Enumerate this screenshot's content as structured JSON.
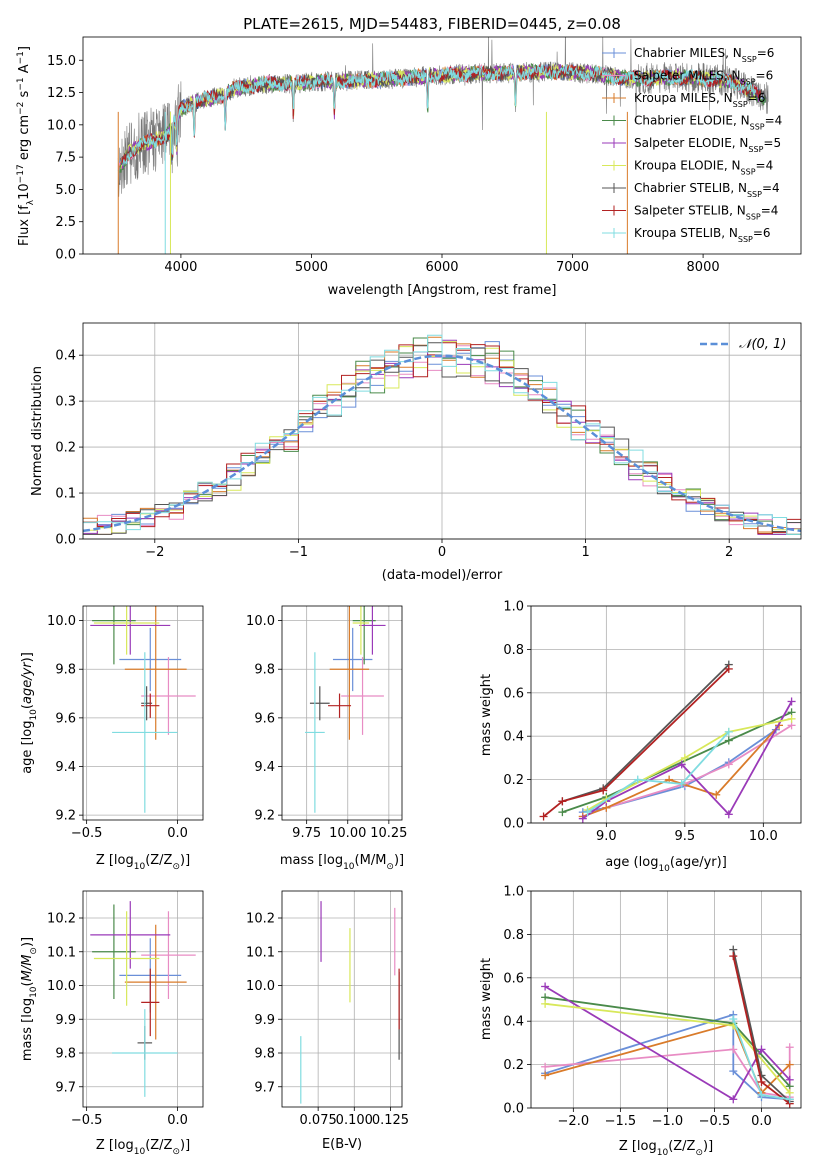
{
  "figure": {
    "title": "PLATE=2615, MJD=54483, FIBERID=0445, z=0.08"
  },
  "colors": {
    "chabrier_miles": "#6a8fd8",
    "salpeter_miles": "#e88cc4",
    "kroupa_miles": "#d97b2a",
    "chabrier_elodie": "#4a8a4a",
    "salpeter_elodie": "#9a3ab8",
    "kroupa_elodie": "#d8e85a",
    "chabrier_stelib": "#555555",
    "salpeter_stelib": "#b22222",
    "kroupa_stelib": "#80dce0",
    "grid": "#b0b0b0",
    "normal_curve": "#5b8fd8"
  },
  "chart_data": [
    {
      "id": "spectrum",
      "type": "line",
      "xlabel": "wavelength [Angstrom, rest frame]",
      "ylabel_text": "Flux [f",
      "xlim": [
        3250,
        8750
      ],
      "ylim": [
        0,
        16.8
      ],
      "xticks": [
        4000,
        5000,
        6000,
        7000,
        8000
      ],
      "yticks": [
        0.0,
        2.5,
        5.0,
        7.5,
        10.0,
        12.5,
        15.0
      ],
      "legend": {
        "position": "right",
        "entries": [
          {
            "label": "Chabrier MILES, N",
            "ssp": "6"
          },
          {
            "label": "Salpeter MILES, N",
            "ssp": "6"
          },
          {
            "label": "Kroupa MILES, N",
            "ssp": "6"
          },
          {
            "label": "Chabrier ELODIE, N",
            "ssp": "4"
          },
          {
            "label": "Salpeter ELODIE, N",
            "ssp": "5"
          },
          {
            "label": "Kroupa ELODIE, N",
            "ssp": "4"
          },
          {
            "label": "Chabrier STELIB, N",
            "ssp": "4"
          },
          {
            "label": "Salpeter STELIB, N",
            "ssp": "4"
          },
          {
            "label": "Kroupa STELIB, N",
            "ssp": "6"
          }
        ]
      },
      "model_anchor_x": [
        3520,
        3600,
        3700,
        3800,
        3900,
        4000,
        4100,
        4200,
        4300,
        4400,
        4500,
        4700,
        4900,
        5100,
        5300,
        5500,
        5700,
        5900,
        6100,
        6300,
        6500,
        6700,
        6900,
        7100,
        7300,
        7400,
        7600,
        7800,
        8000,
        8200,
        8300,
        8400,
        8500
      ],
      "model_anchor_y": [
        6.5,
        7.8,
        8.5,
        8.8,
        9.2,
        11.2,
        11.8,
        12.0,
        12.2,
        12.8,
        13.0,
        13.2,
        13.2,
        13.4,
        13.4,
        13.5,
        13.6,
        13.8,
        13.9,
        14.0,
        14.0,
        14.1,
        14.1,
        14.0,
        13.8,
        13.6,
        13.6,
        13.7,
        13.6,
        13.4,
        13.0,
        12.4,
        11.9
      ]
    },
    {
      "id": "residuals",
      "type": "histogram",
      "xlabel": "(data-model)/error",
      "ylabel": "Normed distribution",
      "xlim": [
        -2.5,
        2.5
      ],
      "ylim": [
        0,
        0.47
      ],
      "xticks": [
        -2,
        -1,
        0,
        1,
        2
      ],
      "yticks": [
        0.0,
        0.1,
        0.2,
        0.3,
        0.4
      ],
      "grid": true,
      "legend": {
        "position": "top-right",
        "label": "𝒩(0, 1)"
      },
      "bin_edges_start": -2.5,
      "bin_width": 0.1,
      "normal_curve": {
        "mu": 0,
        "sigma": 1
      }
    },
    {
      "id": "age_vs_Z",
      "type": "scatter",
      "xlabel": "Z [log",
      "ylabel": "age  [log",
      "xlim": [
        -0.52,
        0.14
      ],
      "ylim": [
        9.18,
        10.06
      ],
      "xticks": [
        -0.5,
        0.0
      ],
      "yticks": [
        9.2,
        9.4,
        9.6,
        9.8,
        10.0
      ],
      "grid": true,
      "points": [
        {
          "series": "chabrier_miles",
          "x": -0.15,
          "y": 9.84,
          "xerr": 0.17,
          "yerr": 0.13
        },
        {
          "series": "salpeter_miles",
          "x": -0.05,
          "y": 9.69,
          "xerr": 0.15,
          "yerr": 0.16
        },
        {
          "series": "kroupa_miles",
          "x": -0.12,
          "y": 9.8,
          "xerr": 0.17,
          "yerr": 0.29
        },
        {
          "series": "chabrier_elodie",
          "x": -0.35,
          "y": 10.0,
          "xerr": 0.12,
          "yerr": 0.18
        },
        {
          "series": "salpeter_elodie",
          "x": -0.26,
          "y": 9.98,
          "xerr": 0.22,
          "yerr": 0.12
        },
        {
          "series": "kroupa_elodie",
          "x": -0.28,
          "y": 9.99,
          "xerr": 0.18,
          "yerr": 0.13
        },
        {
          "series": "chabrier_stelib",
          "x": -0.17,
          "y": 9.66,
          "xerr": 0.03,
          "yerr": 0.07
        },
        {
          "series": "salpeter_stelib",
          "x": -0.15,
          "y": 9.65,
          "xerr": 0.05,
          "yerr": 0.05
        },
        {
          "series": "kroupa_stelib",
          "x": -0.18,
          "y": 9.54,
          "xerr": 0.18,
          "yerr": 0.33
        }
      ]
    },
    {
      "id": "age_vs_mass",
      "type": "scatter",
      "xlabel": "mass [log",
      "xlim": [
        9.6,
        10.33
      ],
      "ylim": [
        9.18,
        10.06
      ],
      "xticks": [
        9.75,
        10.0,
        10.25
      ],
      "yticks": [
        9.2,
        9.4,
        9.6,
        9.8,
        10.0
      ],
      "grid": true,
      "points": [
        {
          "series": "chabrier_miles",
          "x": 10.03,
          "y": 9.84,
          "xerr": 0.12,
          "yerr": 0.13
        },
        {
          "series": "salpeter_miles",
          "x": 10.09,
          "y": 9.69,
          "xerr": 0.13,
          "yerr": 0.16
        },
        {
          "series": "kroupa_miles",
          "x": 10.01,
          "y": 9.8,
          "xerr": 0.12,
          "yerr": 0.29
        },
        {
          "series": "chabrier_elodie",
          "x": 10.1,
          "y": 10.0,
          "xerr": 0.07,
          "yerr": 0.18
        },
        {
          "series": "salpeter_elodie",
          "x": 10.15,
          "y": 9.98,
          "xerr": 0.08,
          "yerr": 0.12
        },
        {
          "series": "kroupa_elodie",
          "x": 10.08,
          "y": 9.99,
          "xerr": 0.05,
          "yerr": 0.13
        },
        {
          "series": "chabrier_stelib",
          "x": 9.83,
          "y": 9.66,
          "xerr": 0.06,
          "yerr": 0.07
        },
        {
          "series": "salpeter_stelib",
          "x": 9.95,
          "y": 9.65,
          "xerr": 0.07,
          "yerr": 0.05
        },
        {
          "series": "kroupa_stelib",
          "x": 9.8,
          "y": 9.54,
          "xerr": 0.06,
          "yerr": 0.33
        }
      ]
    },
    {
      "id": "mass_weight_vs_age",
      "type": "line",
      "xlabel": "age  (log",
      "ylabel": "mass weight",
      "xlim": [
        8.52,
        10.24
      ],
      "ylim": [
        0,
        1
      ],
      "xticks": [
        9.0,
        9.5,
        10.0
      ],
      "yticks": [
        0.0,
        0.2,
        0.4,
        0.6,
        0.8,
        1.0
      ],
      "grid": true,
      "series": [
        {
          "key": "chabrier_miles",
          "x": [
            8.85,
            9.0,
            9.5,
            9.78,
            10.08
          ],
          "y": [
            0.05,
            0.07,
            0.17,
            0.28,
            0.43
          ]
        },
        {
          "key": "salpeter_miles",
          "x": [
            8.85,
            9.0,
            9.5,
            9.78,
            10.18
          ],
          "y": [
            0.03,
            0.07,
            0.18,
            0.27,
            0.45
          ]
        },
        {
          "key": "kroupa_miles",
          "x": [
            8.85,
            9.0,
            9.4,
            9.7,
            10.1
          ],
          "y": [
            0.03,
            0.07,
            0.2,
            0.13,
            0.45
          ]
        },
        {
          "key": "chabrier_elodie",
          "x": [
            8.72,
            9.0,
            9.78,
            10.18
          ],
          "y": [
            0.05,
            0.12,
            0.38,
            0.51
          ]
        },
        {
          "key": "salpeter_elodie",
          "x": [
            8.85,
            9.0,
            9.48,
            9.78,
            10.18
          ],
          "y": [
            0.02,
            0.1,
            0.27,
            0.04,
            0.56
          ]
        },
        {
          "key": "kroupa_elodie",
          "x": [
            8.88,
            9.0,
            9.5,
            9.78,
            10.18
          ],
          "y": [
            0.06,
            0.11,
            0.3,
            0.42,
            0.48
          ]
        },
        {
          "key": "chabrier_stelib",
          "x": [
            8.72,
            8.98,
            9.78
          ],
          "y": [
            0.1,
            0.16,
            0.73
          ]
        },
        {
          "key": "salpeter_stelib",
          "x": [
            8.6,
            8.72,
            8.98,
            9.78
          ],
          "y": [
            0.03,
            0.1,
            0.15,
            0.71
          ]
        },
        {
          "key": "kroupa_stelib",
          "x": [
            8.88,
            9.2,
            9.48,
            9.78
          ],
          "y": [
            0.05,
            0.2,
            0.18,
            0.42
          ]
        }
      ]
    },
    {
      "id": "mass_vs_Z",
      "type": "scatter",
      "xlabel": "Z [log",
      "ylabel": "mass [log",
      "xlim": [
        -0.52,
        0.14
      ],
      "ylim": [
        9.64,
        10.28
      ],
      "xticks": [
        -0.5,
        0.0
      ],
      "yticks": [
        9.7,
        9.8,
        9.9,
        10.0,
        10.1,
        10.2
      ],
      "grid": true,
      "points": [
        {
          "series": "chabrier_miles",
          "x": -0.15,
          "y": 10.03,
          "xerr": 0.17,
          "yerr": 0.11
        },
        {
          "series": "salpeter_miles",
          "x": -0.05,
          "y": 10.09,
          "xerr": 0.15,
          "yerr": 0.13
        },
        {
          "series": "kroupa_miles",
          "x": -0.12,
          "y": 10.01,
          "xerr": 0.17,
          "yerr": 0.17
        },
        {
          "series": "chabrier_elodie",
          "x": -0.35,
          "y": 10.1,
          "xerr": 0.12,
          "yerr": 0.14
        },
        {
          "series": "salpeter_elodie",
          "x": -0.26,
          "y": 10.15,
          "xerr": 0.22,
          "yerr": 0.1
        },
        {
          "series": "kroupa_elodie",
          "x": -0.28,
          "y": 10.08,
          "xerr": 0.18,
          "yerr": 0.14
        },
        {
          "series": "chabrier_stelib",
          "x": -0.18,
          "y": 9.83,
          "xerr": 0.04,
          "yerr": 0.05
        },
        {
          "series": "salpeter_stelib",
          "x": -0.15,
          "y": 9.95,
          "xerr": 0.05,
          "yerr": 0.1
        },
        {
          "series": "kroupa_stelib",
          "x": -0.18,
          "y": 9.8,
          "xerr": 0.18,
          "yerr": 0.13
        }
      ]
    },
    {
      "id": "mass_vs_EBV",
      "type": "scatter",
      "xlabel": "E(B-V)",
      "xlim": [
        0.05,
        0.133
      ],
      "ylim": [
        9.64,
        10.28
      ],
      "xticks": [
        0.075,
        0.1,
        0.125
      ],
      "xtick_labels": [
        "0.075",
        "0.100",
        "0.125"
      ],
      "yticks": [
        9.7,
        9.8,
        9.9,
        10.0,
        10.1,
        10.2
      ],
      "grid": true,
      "points": [
        {
          "series": "salpeter_elodie",
          "x": 0.077,
          "y": 10.16,
          "yerr": 0.09
        },
        {
          "series": "kroupa_elodie",
          "x": 0.097,
          "y": 10.06,
          "yerr": 0.11
        },
        {
          "series": "salpeter_miles",
          "x": 0.128,
          "y": 10.13,
          "yerr": 0.1
        },
        {
          "series": "chabrier_stelib",
          "x": 0.131,
          "y": 9.91,
          "yerr": 0.13
        },
        {
          "series": "salpeter_stelib",
          "x": 0.131,
          "y": 9.96,
          "yerr": 0.09
        },
        {
          "series": "kroupa_stelib",
          "x": 0.063,
          "y": 9.75,
          "yerr": 0.1
        }
      ]
    },
    {
      "id": "mass_weight_vs_Z",
      "type": "line",
      "xlabel": "Z [log",
      "ylabel": "mass weight",
      "xlim": [
        -2.45,
        0.42
      ],
      "ylim": [
        0,
        1
      ],
      "xticks": [
        -2.0,
        -1.5,
        -1.0,
        -0.5,
        0.0
      ],
      "yticks": [
        0.0,
        0.2,
        0.4,
        0.6,
        0.8,
        1.0
      ],
      "grid": true,
      "series": [
        {
          "key": "chabrier_miles",
          "x": [
            -2.3,
            -0.3,
            -0.3,
            0.0,
            0.3
          ],
          "y": [
            0.16,
            0.43,
            0.17,
            0.05,
            0.04
          ]
        },
        {
          "key": "salpeter_miles",
          "x": [
            -2.3,
            -0.3,
            0.0,
            0.3,
            0.3
          ],
          "y": [
            0.19,
            0.27,
            0.07,
            0.05,
            0.28
          ]
        },
        {
          "key": "kroupa_miles",
          "x": [
            -2.3,
            -0.3,
            0.0,
            0.3
          ],
          "y": [
            0.15,
            0.39,
            0.07,
            0.2
          ]
        },
        {
          "key": "chabrier_elodie",
          "x": [
            -2.3,
            -0.3,
            0.3
          ],
          "y": [
            0.51,
            0.39,
            0.1
          ]
        },
        {
          "key": "salpeter_elodie",
          "x": [
            -2.3,
            -0.3,
            0.0,
            0.3
          ],
          "y": [
            0.56,
            0.04,
            0.27,
            0.13
          ]
        },
        {
          "key": "kroupa_elodie",
          "x": [
            -2.3,
            -0.3,
            0.3
          ],
          "y": [
            0.48,
            0.38,
            0.07
          ]
        },
        {
          "key": "chabrier_stelib",
          "x": [
            -0.3,
            0.0,
            0.3
          ],
          "y": [
            0.73,
            0.15,
            0.03
          ]
        },
        {
          "key": "salpeter_stelib",
          "x": [
            -0.3,
            0.0,
            0.3
          ],
          "y": [
            0.7,
            0.12,
            0.02
          ]
        },
        {
          "key": "kroupa_stelib",
          "x": [
            -0.3,
            0.0,
            0.3
          ],
          "y": [
            0.41,
            0.06,
            0.04
          ]
        }
      ]
    }
  ]
}
